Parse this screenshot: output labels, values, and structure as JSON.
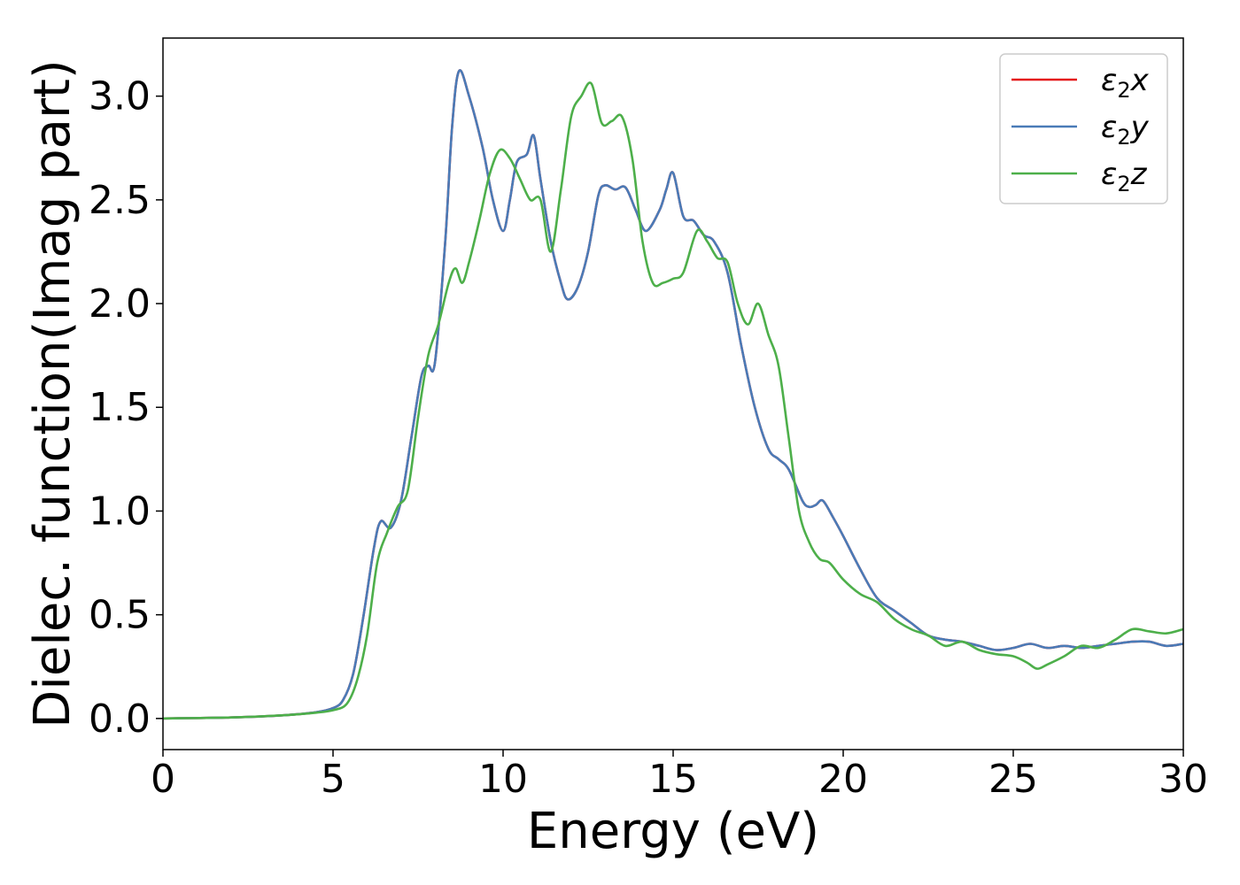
{
  "chart_data": {
    "type": "line",
    "xlabel": "Energy (eV)",
    "ylabel": "Dielec. function(Imag part)",
    "xlim": [
      0,
      30
    ],
    "ylim": [
      -0.15,
      3.28
    ],
    "xticks": [
      0,
      5,
      10,
      15,
      20,
      25,
      30
    ],
    "xtick_labels": [
      "0",
      "5",
      "10",
      "15",
      "20",
      "25",
      "30"
    ],
    "yticks": [
      0.0,
      0.5,
      1.0,
      1.5,
      2.0,
      2.5,
      3.0
    ],
    "ytick_labels": [
      "0.0",
      "0.5",
      "1.0",
      "1.5",
      "2.0",
      "2.5",
      "3.0"
    ],
    "grid": false,
    "legend_position": "top-right",
    "series": [
      {
        "name": "ε₂x",
        "label_base": "ε",
        "label_sub": "2",
        "label_var": "x",
        "color": "#e41a1c",
        "points": [
          [
            0,
            0.0
          ],
          [
            2,
            0.005
          ],
          [
            3.5,
            0.015
          ],
          [
            4.5,
            0.03
          ],
          [
            5.0,
            0.05
          ],
          [
            5.3,
            0.09
          ],
          [
            5.6,
            0.22
          ],
          [
            5.9,
            0.5
          ],
          [
            6.2,
            0.82
          ],
          [
            6.4,
            0.95
          ],
          [
            6.7,
            0.92
          ],
          [
            7.0,
            1.05
          ],
          [
            7.3,
            1.35
          ],
          [
            7.6,
            1.65
          ],
          [
            7.8,
            1.7
          ],
          [
            8.0,
            1.72
          ],
          [
            8.3,
            2.3
          ],
          [
            8.5,
            2.85
          ],
          [
            8.7,
            3.12
          ],
          [
            9.0,
            3.0
          ],
          [
            9.4,
            2.75
          ],
          [
            9.7,
            2.5
          ],
          [
            10.0,
            2.35
          ],
          [
            10.2,
            2.5
          ],
          [
            10.4,
            2.68
          ],
          [
            10.7,
            2.72
          ],
          [
            10.9,
            2.81
          ],
          [
            11.1,
            2.6
          ],
          [
            11.4,
            2.3
          ],
          [
            11.7,
            2.1
          ],
          [
            11.9,
            2.02
          ],
          [
            12.2,
            2.08
          ],
          [
            12.5,
            2.25
          ],
          [
            12.8,
            2.52
          ],
          [
            13.0,
            2.57
          ],
          [
            13.3,
            2.55
          ],
          [
            13.6,
            2.56
          ],
          [
            13.9,
            2.45
          ],
          [
            14.2,
            2.35
          ],
          [
            14.6,
            2.45
          ],
          [
            14.8,
            2.55
          ],
          [
            15.0,
            2.63
          ],
          [
            15.3,
            2.42
          ],
          [
            15.6,
            2.4
          ],
          [
            15.9,
            2.33
          ],
          [
            16.2,
            2.3
          ],
          [
            16.6,
            2.15
          ],
          [
            17.0,
            1.8
          ],
          [
            17.4,
            1.5
          ],
          [
            17.8,
            1.3
          ],
          [
            18.1,
            1.25
          ],
          [
            18.4,
            1.2
          ],
          [
            18.8,
            1.05
          ],
          [
            19.0,
            1.02
          ],
          [
            19.2,
            1.03
          ],
          [
            19.4,
            1.05
          ],
          [
            19.7,
            0.97
          ],
          [
            20.0,
            0.88
          ],
          [
            20.5,
            0.72
          ],
          [
            21.0,
            0.58
          ],
          [
            21.5,
            0.52
          ],
          [
            22.0,
            0.46
          ],
          [
            22.5,
            0.4
          ],
          [
            23.0,
            0.38
          ],
          [
            23.5,
            0.37
          ],
          [
            24.0,
            0.35
          ],
          [
            24.5,
            0.33
          ],
          [
            25.0,
            0.34
          ],
          [
            25.5,
            0.36
          ],
          [
            26.0,
            0.34
          ],
          [
            26.5,
            0.35
          ],
          [
            27.0,
            0.34
          ],
          [
            27.5,
            0.35
          ],
          [
            28.0,
            0.36
          ],
          [
            28.5,
            0.37
          ],
          [
            29.0,
            0.37
          ],
          [
            29.5,
            0.35
          ],
          [
            30.0,
            0.36
          ]
        ]
      },
      {
        "name": "ε₂y",
        "label_base": "ε",
        "label_sub": "2",
        "label_var": "y",
        "color": "#4a7bb7",
        "points": [
          [
            0,
            0.0
          ],
          [
            2,
            0.005
          ],
          [
            3.5,
            0.015
          ],
          [
            4.5,
            0.03
          ],
          [
            5.0,
            0.05
          ],
          [
            5.3,
            0.09
          ],
          [
            5.6,
            0.22
          ],
          [
            5.9,
            0.5
          ],
          [
            6.2,
            0.82
          ],
          [
            6.4,
            0.95
          ],
          [
            6.7,
            0.92
          ],
          [
            7.0,
            1.05
          ],
          [
            7.3,
            1.35
          ],
          [
            7.6,
            1.65
          ],
          [
            7.8,
            1.7
          ],
          [
            8.0,
            1.72
          ],
          [
            8.3,
            2.3
          ],
          [
            8.5,
            2.85
          ],
          [
            8.7,
            3.12
          ],
          [
            9.0,
            3.0
          ],
          [
            9.4,
            2.75
          ],
          [
            9.7,
            2.5
          ],
          [
            10.0,
            2.35
          ],
          [
            10.2,
            2.5
          ],
          [
            10.4,
            2.68
          ],
          [
            10.7,
            2.72
          ],
          [
            10.9,
            2.81
          ],
          [
            11.1,
            2.6
          ],
          [
            11.4,
            2.3
          ],
          [
            11.7,
            2.1
          ],
          [
            11.9,
            2.02
          ],
          [
            12.2,
            2.08
          ],
          [
            12.5,
            2.25
          ],
          [
            12.8,
            2.52
          ],
          [
            13.0,
            2.57
          ],
          [
            13.3,
            2.55
          ],
          [
            13.6,
            2.56
          ],
          [
            13.9,
            2.45
          ],
          [
            14.2,
            2.35
          ],
          [
            14.6,
            2.45
          ],
          [
            14.8,
            2.55
          ],
          [
            15.0,
            2.63
          ],
          [
            15.3,
            2.42
          ],
          [
            15.6,
            2.4
          ],
          [
            15.9,
            2.33
          ],
          [
            16.2,
            2.3
          ],
          [
            16.6,
            2.15
          ],
          [
            17.0,
            1.8
          ],
          [
            17.4,
            1.5
          ],
          [
            17.8,
            1.3
          ],
          [
            18.1,
            1.25
          ],
          [
            18.4,
            1.2
          ],
          [
            18.8,
            1.05
          ],
          [
            19.0,
            1.02
          ],
          [
            19.2,
            1.03
          ],
          [
            19.4,
            1.05
          ],
          [
            19.7,
            0.97
          ],
          [
            20.0,
            0.88
          ],
          [
            20.5,
            0.72
          ],
          [
            21.0,
            0.58
          ],
          [
            21.5,
            0.52
          ],
          [
            22.0,
            0.46
          ],
          [
            22.5,
            0.4
          ],
          [
            23.0,
            0.38
          ],
          [
            23.5,
            0.37
          ],
          [
            24.0,
            0.35
          ],
          [
            24.5,
            0.33
          ],
          [
            25.0,
            0.34
          ],
          [
            25.5,
            0.36
          ],
          [
            26.0,
            0.34
          ],
          [
            26.5,
            0.35
          ],
          [
            27.0,
            0.34
          ],
          [
            27.5,
            0.35
          ],
          [
            28.0,
            0.36
          ],
          [
            28.5,
            0.37
          ],
          [
            29.0,
            0.37
          ],
          [
            29.5,
            0.35
          ],
          [
            30.0,
            0.36
          ]
        ]
      },
      {
        "name": "ε₂z",
        "label_base": "ε",
        "label_sub": "2",
        "label_var": "z",
        "color": "#4daf4a",
        "points": [
          [
            0,
            0.0
          ],
          [
            2,
            0.005
          ],
          [
            3.5,
            0.015
          ],
          [
            4.5,
            0.028
          ],
          [
            5.0,
            0.04
          ],
          [
            5.4,
            0.07
          ],
          [
            5.7,
            0.18
          ],
          [
            6.0,
            0.4
          ],
          [
            6.3,
            0.75
          ],
          [
            6.6,
            0.9
          ],
          [
            6.9,
            1.02
          ],
          [
            7.2,
            1.1
          ],
          [
            7.5,
            1.45
          ],
          [
            7.8,
            1.75
          ],
          [
            8.1,
            1.9
          ],
          [
            8.4,
            2.1
          ],
          [
            8.6,
            2.17
          ],
          [
            8.8,
            2.1
          ],
          [
            9.0,
            2.2
          ],
          [
            9.3,
            2.4
          ],
          [
            9.6,
            2.62
          ],
          [
            9.9,
            2.74
          ],
          [
            10.2,
            2.7
          ],
          [
            10.5,
            2.6
          ],
          [
            10.8,
            2.5
          ],
          [
            11.1,
            2.5
          ],
          [
            11.4,
            2.25
          ],
          [
            11.7,
            2.55
          ],
          [
            12.0,
            2.9
          ],
          [
            12.3,
            3.0
          ],
          [
            12.6,
            3.06
          ],
          [
            12.9,
            2.87
          ],
          [
            13.2,
            2.88
          ],
          [
            13.5,
            2.9
          ],
          [
            13.8,
            2.7
          ],
          [
            14.1,
            2.3
          ],
          [
            14.4,
            2.1
          ],
          [
            14.7,
            2.1
          ],
          [
            15.0,
            2.12
          ],
          [
            15.3,
            2.15
          ],
          [
            15.7,
            2.35
          ],
          [
            16.0,
            2.3
          ],
          [
            16.3,
            2.22
          ],
          [
            16.6,
            2.2
          ],
          [
            16.9,
            2.0
          ],
          [
            17.2,
            1.9
          ],
          [
            17.5,
            2.0
          ],
          [
            17.8,
            1.85
          ],
          [
            18.1,
            1.7
          ],
          [
            18.4,
            1.35
          ],
          [
            18.7,
            1.0
          ],
          [
            19.0,
            0.85
          ],
          [
            19.3,
            0.77
          ],
          [
            19.6,
            0.75
          ],
          [
            20.0,
            0.67
          ],
          [
            20.5,
            0.6
          ],
          [
            21.0,
            0.56
          ],
          [
            21.5,
            0.48
          ],
          [
            22.0,
            0.43
          ],
          [
            22.5,
            0.4
          ],
          [
            23.0,
            0.35
          ],
          [
            23.5,
            0.37
          ],
          [
            24.0,
            0.33
          ],
          [
            24.5,
            0.31
          ],
          [
            25.0,
            0.3
          ],
          [
            25.4,
            0.27
          ],
          [
            25.7,
            0.24
          ],
          [
            26.0,
            0.26
          ],
          [
            26.5,
            0.3
          ],
          [
            27.0,
            0.35
          ],
          [
            27.5,
            0.34
          ],
          [
            28.0,
            0.38
          ],
          [
            28.5,
            0.43
          ],
          [
            29.0,
            0.42
          ],
          [
            29.5,
            0.41
          ],
          [
            30.0,
            0.43
          ]
        ]
      }
    ]
  }
}
